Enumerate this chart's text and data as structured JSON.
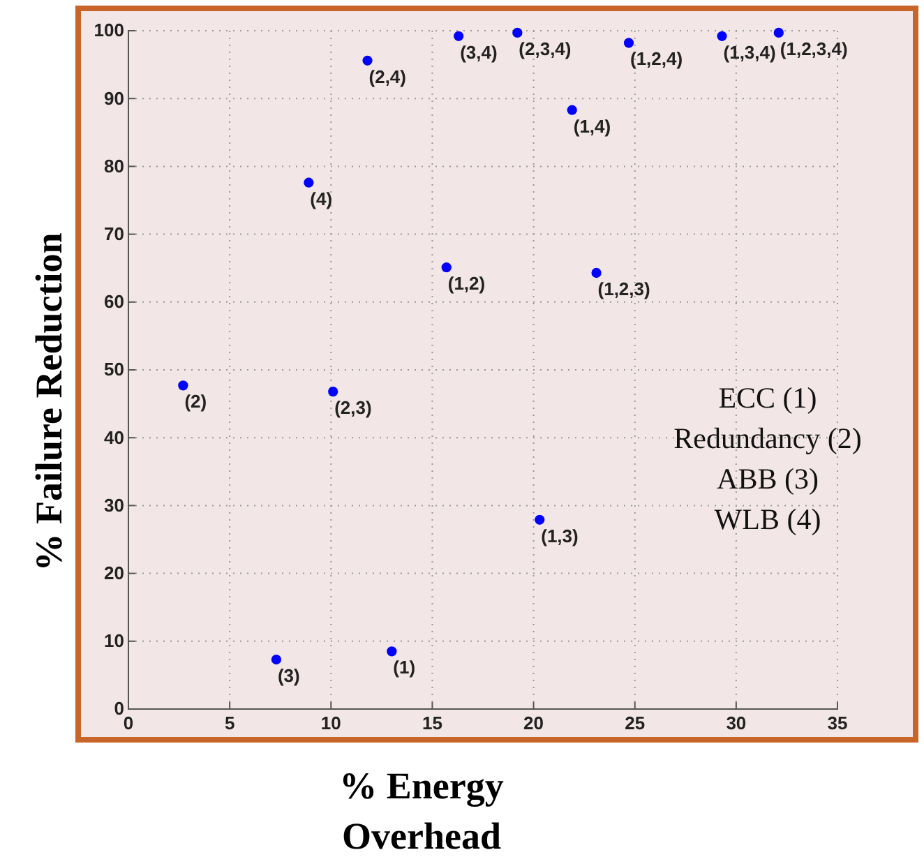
{
  "chart_data": {
    "type": "scatter",
    "xlabel": "% Energy Overhead",
    "ylabel": "% Failure Reduction",
    "x": [
      13.0,
      2.7,
      7.3,
      8.9,
      15.7,
      20.3,
      21.9,
      10.1,
      11.8,
      16.3,
      23.1,
      24.7,
      29.3,
      19.2,
      32.1
    ],
    "series": [
      {
        "color": "#0000ff",
        "values": [
          8.5,
          47.7,
          7.3,
          77.6,
          65.1,
          27.9,
          88.3,
          46.8,
          95.6,
          99.2,
          64.3,
          98.2,
          99.2,
          99.7,
          99.7
        ]
      }
    ],
    "xlim": [
      0,
      35
    ],
    "xticks": [
      0,
      5,
      10,
      15,
      20,
      25,
      30,
      35
    ],
    "ylim": [
      0,
      100
    ],
    "yticks": [
      0,
      10,
      20,
      30,
      40,
      50,
      60,
      70,
      80,
      90,
      100
    ],
    "grid": true,
    "marker": "circle",
    "annotations": [
      {
        "text": "(1)",
        "x": 13.0,
        "y": 8.5
      },
      {
        "text": "(2)",
        "x": 2.7,
        "y": 47.7
      },
      {
        "text": "(3)",
        "x": 7.3,
        "y": 7.3
      },
      {
        "text": "(4)",
        "x": 8.9,
        "y": 77.6
      },
      {
        "text": "(1,2)",
        "x": 15.7,
        "y": 65.1
      },
      {
        "text": "(1,3)",
        "x": 20.3,
        "y": 27.9
      },
      {
        "text": "(1,4)",
        "x": 21.9,
        "y": 88.3
      },
      {
        "text": "(2,3)",
        "x": 10.1,
        "y": 46.8
      },
      {
        "text": "(2,4)",
        "x": 11.8,
        "y": 95.6
      },
      {
        "text": "(3,4)",
        "x": 16.3,
        "y": 99.2
      },
      {
        "text": "(1,2,3)",
        "x": 23.1,
        "y": 64.3
      },
      {
        "text": "(1,2,4)",
        "x": 24.7,
        "y": 98.2
      },
      {
        "text": "(1,3,4)",
        "x": 29.3,
        "y": 99.2
      },
      {
        "text": "(2,3,4)",
        "x": 19.2,
        "y": 99.7
      },
      {
        "text": "(1,2,3,4)",
        "x": 32.1,
        "y": 99.7
      },
      "ECC (1)",
      "Redundancy (2)",
      "ABB (3)",
      "WLB (4)"
    ]
  }
}
